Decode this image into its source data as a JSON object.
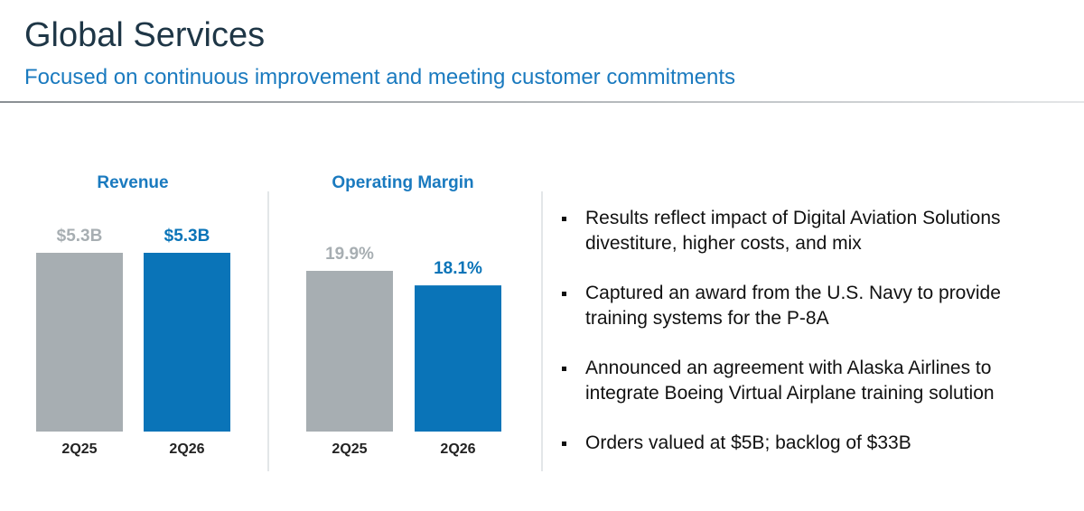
{
  "header": {
    "title": "Global Services",
    "subtitle": "Focused on continuous improvement and meeting customer commitments"
  },
  "chart_data": [
    {
      "type": "bar",
      "title": "Revenue",
      "categories": [
        "2Q25",
        "2Q26"
      ],
      "values": [
        5.3,
        5.3
      ],
      "value_labels": [
        "$5.3B",
        "$5.3B"
      ],
      "colors": [
        "#a7aeb2",
        "#0a74b8"
      ]
    },
    {
      "type": "bar",
      "title": "Operating Margin",
      "categories": [
        "2Q25",
        "2Q26"
      ],
      "values": [
        19.9,
        18.1
      ],
      "value_labels": [
        "19.9%",
        "18.1%"
      ],
      "colors": [
        "#a7aeb2",
        "#0a74b8"
      ]
    }
  ],
  "bullets": [
    "Results reflect impact of Digital Aviation Solutions divestiture, higher costs, and mix",
    "Captured an award from the U.S. Navy to provide training systems for the P-8A",
    "Announced an agreement with Alaska Airlines to integrate Boeing Virtual Airplane training solution",
    "Orders valued at $5B; backlog of $33B"
  ]
}
